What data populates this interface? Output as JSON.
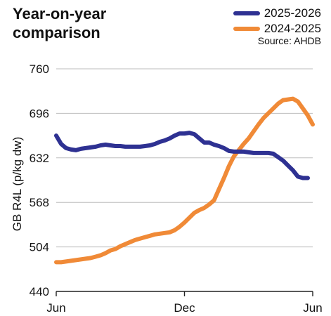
{
  "chart_data": {
    "type": "line",
    "title": "Year-on-year comparison",
    "source": "Source: AHDB",
    "ylabel": "GB R4L (p/kg dw)",
    "xlabel": "",
    "ylim": [
      440,
      760
    ],
    "yticks": [
      440,
      504,
      568,
      632,
      696,
      760
    ],
    "xticks": [
      "Jun",
      "Dec",
      "Jun"
    ],
    "x_range": [
      0,
      52
    ],
    "grid": "horizontal",
    "legend_position": "top-right",
    "series": [
      {
        "name": "2025-2026",
        "color": "#2e3192",
        "points": [
          [
            0,
            664
          ],
          [
            1,
            652
          ],
          [
            2,
            646
          ],
          [
            3,
            644
          ],
          [
            4,
            643
          ],
          [
            5,
            645
          ],
          [
            6,
            646
          ],
          [
            7,
            647
          ],
          [
            8,
            648
          ],
          [
            9,
            650
          ],
          [
            10,
            651
          ],
          [
            11,
            650
          ],
          [
            12,
            649
          ],
          [
            13,
            649
          ],
          [
            14,
            648
          ],
          [
            15,
            648
          ],
          [
            16,
            648
          ],
          [
            17,
            648
          ],
          [
            18,
            649
          ],
          [
            19,
            650
          ],
          [
            20,
            652
          ],
          [
            21,
            655
          ],
          [
            22,
            657
          ],
          [
            23,
            660
          ],
          [
            24,
            664
          ],
          [
            25,
            667
          ],
          [
            26,
            667
          ],
          [
            27,
            668
          ],
          [
            28,
            666
          ],
          [
            29,
            660
          ],
          [
            30,
            654
          ],
          [
            31,
            654
          ],
          [
            32,
            651
          ],
          [
            33,
            649
          ],
          [
            34,
            646
          ],
          [
            35,
            642
          ],
          [
            36,
            641
          ],
          [
            37,
            641
          ],
          [
            38,
            641
          ],
          [
            39,
            640
          ],
          [
            40,
            639
          ],
          [
            41,
            639
          ],
          [
            42,
            639
          ],
          [
            43,
            639
          ],
          [
            44,
            638
          ],
          [
            45,
            633
          ],
          [
            46,
            628
          ],
          [
            47,
            621
          ],
          [
            48,
            614
          ],
          [
            49,
            605
          ],
          [
            50,
            603
          ],
          [
            51,
            603
          ]
        ]
      },
      {
        "name": "2024-2025",
        "color": "#f08a37",
        "points": [
          [
            0,
            482
          ],
          [
            1,
            482
          ],
          [
            2,
            483
          ],
          [
            3,
            484
          ],
          [
            4,
            485
          ],
          [
            5,
            486
          ],
          [
            6,
            487
          ],
          [
            7,
            488
          ],
          [
            8,
            490
          ],
          [
            9,
            492
          ],
          [
            10,
            495
          ],
          [
            11,
            499
          ],
          [
            12,
            501
          ],
          [
            13,
            505
          ],
          [
            14,
            508
          ],
          [
            15,
            511
          ],
          [
            16,
            514
          ],
          [
            17,
            516
          ],
          [
            18,
            518
          ],
          [
            19,
            520
          ],
          [
            20,
            522
          ],
          [
            21,
            523
          ],
          [
            22,
            524
          ],
          [
            23,
            525
          ],
          [
            24,
            528
          ],
          [
            25,
            533
          ],
          [
            26,
            539
          ],
          [
            27,
            546
          ],
          [
            28,
            553
          ],
          [
            29,
            557
          ],
          [
            30,
            560
          ],
          [
            31,
            565
          ],
          [
            32,
            571
          ],
          [
            33,
            587
          ],
          [
            34,
            603
          ],
          [
            35,
            620
          ],
          [
            36,
            634
          ],
          [
            37,
            643
          ],
          [
            38,
            652
          ],
          [
            39,
            660
          ],
          [
            40,
            670
          ],
          [
            41,
            680
          ],
          [
            42,
            689
          ],
          [
            43,
            696
          ],
          [
            44,
            703
          ],
          [
            45,
            710
          ],
          [
            46,
            715
          ],
          [
            47,
            716
          ],
          [
            48,
            717
          ],
          [
            49,
            713
          ],
          [
            50,
            703
          ],
          [
            51,
            693
          ],
          [
            52,
            680
          ]
        ]
      }
    ]
  }
}
